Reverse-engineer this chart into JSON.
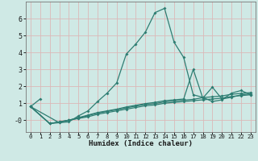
{
  "xlabel": "Humidex (Indice chaleur)",
  "xlim": [
    -0.5,
    23.5
  ],
  "ylim": [
    -0.7,
    7.0
  ],
  "yticks": [
    0,
    1,
    2,
    3,
    4,
    5,
    6
  ],
  "ytick_labels": [
    "-0",
    "1",
    "2",
    "3",
    "4",
    "5",
    "6"
  ],
  "xticks": [
    0,
    1,
    2,
    3,
    4,
    5,
    6,
    7,
    8,
    9,
    10,
    11,
    12,
    13,
    14,
    15,
    16,
    17,
    18,
    19,
    20,
    21,
    22,
    23
  ],
  "bg_color": "#cfe9e5",
  "grid_color": "#dbb8b8",
  "line_color": "#2e7d72",
  "lines": [
    {
      "x": [
        0,
        1
      ],
      "y": [
        0.8,
        1.25
      ]
    },
    {
      "x": [
        0,
        3,
        4,
        5,
        6,
        7,
        8,
        9,
        10,
        11,
        12,
        13,
        14,
        15,
        16,
        17,
        18,
        19,
        20,
        21,
        22,
        23
      ],
      "y": [
        0.8,
        -0.15,
        -0.1,
        0.25,
        0.55,
        1.1,
        1.6,
        2.2,
        3.9,
        4.5,
        5.2,
        6.35,
        6.6,
        4.6,
        3.7,
        1.5,
        1.35,
        1.1,
        1.2,
        1.6,
        1.75,
        1.5
      ]
    },
    {
      "x": [
        0,
        2,
        3,
        4,
        5,
        6,
        7,
        8,
        9,
        10,
        11,
        12,
        13,
        14,
        15,
        16,
        17,
        18,
        19,
        20,
        21,
        22,
        23
      ],
      "y": [
        0.8,
        -0.2,
        -0.1,
        0.0,
        0.1,
        0.2,
        0.35,
        0.45,
        0.55,
        0.65,
        0.75,
        0.85,
        0.9,
        1.0,
        1.05,
        1.1,
        1.15,
        1.2,
        1.25,
        1.3,
        1.4,
        1.45,
        1.5
      ]
    },
    {
      "x": [
        0,
        2,
        3,
        4,
        5,
        6,
        7,
        8,
        9,
        10,
        11,
        12,
        13,
        14,
        15,
        16,
        17,
        18,
        19,
        20,
        21,
        22,
        23
      ],
      "y": [
        0.8,
        -0.2,
        -0.1,
        0.0,
        0.12,
        0.27,
        0.42,
        0.52,
        0.62,
        0.73,
        0.83,
        0.93,
        0.98,
        1.08,
        1.13,
        1.18,
        1.23,
        1.33,
        1.38,
        1.43,
        1.53,
        1.58,
        1.63
      ]
    },
    {
      "x": [
        0,
        2,
        3,
        4,
        5,
        6,
        7,
        8,
        9,
        10,
        11,
        12,
        13,
        14,
        15,
        16,
        17,
        18,
        19,
        20,
        21,
        22,
        23
      ],
      "y": [
        0.8,
        -0.2,
        -0.15,
        0.0,
        0.15,
        0.3,
        0.45,
        0.55,
        0.65,
        0.78,
        0.88,
        0.98,
        1.05,
        1.15,
        1.2,
        1.25,
        3.0,
        1.3,
        1.95,
        1.25,
        1.35,
        1.5,
        1.55
      ]
    }
  ]
}
